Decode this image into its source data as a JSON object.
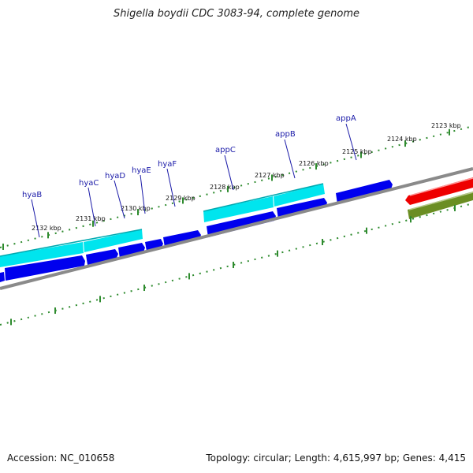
{
  "title": "Shigella boydii CDC 3083-94, complete genome",
  "accession": "Accession: NC_010658",
  "summary": "Topology: circular; Length: 4,615,997 bp; Genes: 4,415",
  "colors": {
    "backbone": "#8a8a8a",
    "cds_forward": "#0000ee",
    "cds_reverse": "#1010d0",
    "operon_band": "#00e5ee",
    "red_feature": "#ee0000",
    "green_feature": "#6b8e23",
    "tick": "#2e8b2e",
    "label_line": "#1a1aa8"
  },
  "tick_labels": [
    {
      "text": "2123 kbp",
      "kbp": 2123
    },
    {
      "text": "2124 kbp",
      "kbp": 2124
    },
    {
      "text": "2125 kbp",
      "kbp": 2125
    },
    {
      "text": "2126 kbp",
      "kbp": 2126
    },
    {
      "text": "2127 kbp",
      "kbp": 2127
    },
    {
      "text": "2128 kbp",
      "kbp": 2128
    },
    {
      "text": "2129 kbp",
      "kbp": 2129
    },
    {
      "text": "2130 kbp",
      "kbp": 2130
    },
    {
      "text": "2131 kbp",
      "kbp": 2131
    },
    {
      "text": "2132 kbp",
      "kbp": 2132
    }
  ],
  "gene_labels": [
    {
      "name": "appA"
    },
    {
      "name": "appB"
    },
    {
      "name": "appC"
    },
    {
      "name": "hyaF"
    },
    {
      "name": "hyaE"
    },
    {
      "name": "hyaD"
    },
    {
      "name": "hyaC"
    },
    {
      "name": "hyaB"
    }
  ]
}
